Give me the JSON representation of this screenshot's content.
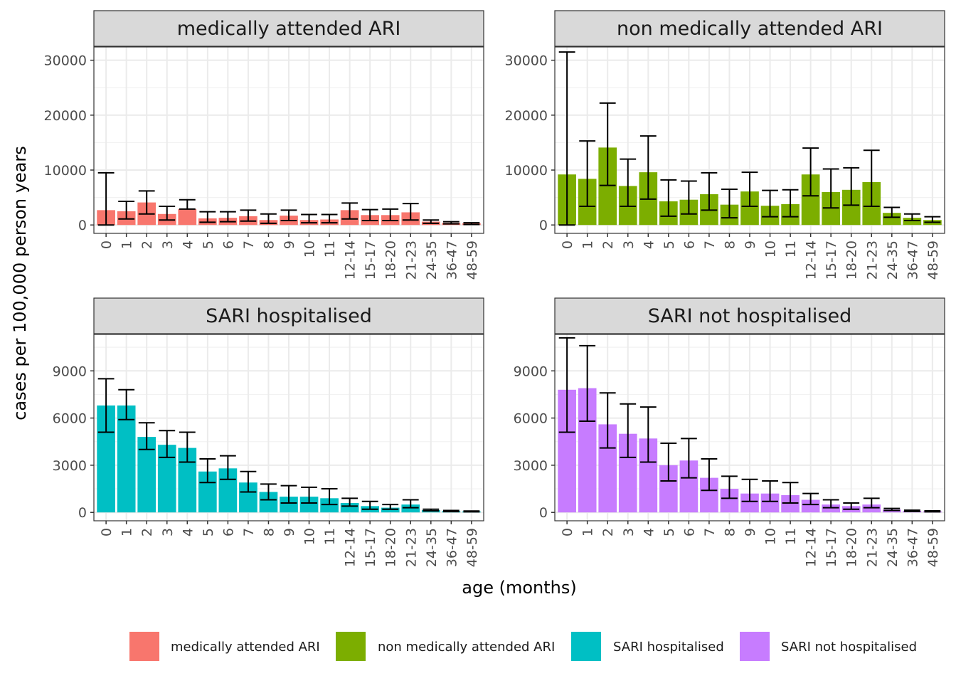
{
  "figure": {
    "xlabel": "age (months)",
    "ylabel": "cases per 100,000 person years"
  },
  "legend": {
    "position": "bottom",
    "entries": [
      {
        "label": "medically attended ARI",
        "color": "#F8766D"
      },
      {
        "label": "non medically attended ARI",
        "color": "#7CAE00"
      },
      {
        "label": "SARI hospitalised",
        "color": "#00BFC4"
      },
      {
        "label": "SARI not hospitalised",
        "color": "#C77CFF"
      }
    ]
  },
  "chart_data": [
    {
      "type": "bar",
      "title": "medically attended ARI",
      "color": "#F8766D",
      "categories": [
        "0",
        "1",
        "2",
        "3",
        "4",
        "5",
        "6",
        "7",
        "8",
        "9",
        "10",
        "11",
        "12-14",
        "15-17",
        "18-20",
        "21-23",
        "24-35",
        "36-47",
        "48-59"
      ],
      "values": [
        2700,
        2500,
        4100,
        2000,
        2900,
        1200,
        1300,
        1600,
        900,
        1700,
        900,
        1000,
        2700,
        1800,
        1800,
        2300,
        600,
        400,
        300
      ],
      "lower": [
        0,
        1100,
        2000,
        900,
        2900,
        500,
        600,
        700,
        300,
        800,
        400,
        400,
        1100,
        800,
        800,
        900,
        300,
        200,
        100
      ],
      "upper": [
        9500,
        4300,
        6200,
        3400,
        4600,
        2400,
        2400,
        2700,
        2000,
        2700,
        1900,
        1900,
        4000,
        2800,
        2900,
        3900,
        900,
        600,
        400
      ],
      "ylim": [
        0,
        31500
      ],
      "yticks": [
        0,
        10000,
        20000,
        30000
      ],
      "grid": true
    },
    {
      "type": "bar",
      "title": "non medically attended ARI",
      "color": "#7CAE00",
      "categories": [
        "0",
        "1",
        "2",
        "3",
        "4",
        "5",
        "6",
        "7",
        "8",
        "9",
        "10",
        "11",
        "12-14",
        "15-17",
        "18-20",
        "21-23",
        "24-35",
        "36-47",
        "48-59"
      ],
      "values": [
        9200,
        8400,
        14100,
        7100,
        9600,
        4300,
        4600,
        5600,
        3700,
        6100,
        3500,
        3800,
        9200,
        6000,
        6400,
        7800,
        2200,
        1300,
        900
      ],
      "lower": [
        0,
        3400,
        7200,
        3400,
        4700,
        1600,
        2000,
        2700,
        1300,
        3400,
        1500,
        1500,
        5300,
        3100,
        3600,
        3400,
        1400,
        800,
        500
      ],
      "upper": [
        31500,
        15300,
        22200,
        12000,
        16200,
        8200,
        8000,
        9500,
        6500,
        9600,
        6300,
        6400,
        14000,
        10200,
        10400,
        13600,
        3200,
        2000,
        1500
      ],
      "ylim": [
        0,
        31500
      ],
      "yticks": [
        0,
        10000,
        20000,
        30000
      ],
      "grid": true
    },
    {
      "type": "bar",
      "title": "SARI hospitalised",
      "color": "#00BFC4",
      "categories": [
        "0",
        "1",
        "2",
        "3",
        "4",
        "5",
        "6",
        "7",
        "8",
        "9",
        "10",
        "11",
        "12-14",
        "15-17",
        "18-20",
        "21-23",
        "24-35",
        "36-47",
        "48-59"
      ],
      "values": [
        6800,
        6800,
        4800,
        4300,
        4100,
        2600,
        2800,
        1900,
        1300,
        1000,
        1000,
        900,
        600,
        400,
        300,
        500,
        150,
        80,
        60
      ],
      "lower": [
        5100,
        5900,
        4000,
        3500,
        3200,
        1900,
        2100,
        1300,
        800,
        600,
        600,
        500,
        400,
        200,
        200,
        300,
        100,
        50,
        40
      ],
      "upper": [
        8500,
        7800,
        5700,
        5200,
        5100,
        3400,
        3600,
        2600,
        1800,
        1700,
        1600,
        1500,
        900,
        700,
        500,
        800,
        200,
        120,
        90
      ],
      "ylim": [
        0,
        11000
      ],
      "yticks": [
        0,
        3000,
        6000,
        9000
      ],
      "grid": true
    },
    {
      "type": "bar",
      "title": "SARI not hospitalised",
      "color": "#C77CFF",
      "categories": [
        "0",
        "1",
        "2",
        "3",
        "4",
        "5",
        "6",
        "7",
        "8",
        "9",
        "10",
        "11",
        "12-14",
        "15-17",
        "18-20",
        "21-23",
        "24-35",
        "36-47",
        "48-59"
      ],
      "values": [
        7800,
        7900,
        5600,
        5000,
        4700,
        3000,
        3300,
        2200,
        1500,
        1200,
        1200,
        1100,
        800,
        500,
        400,
        500,
        180,
        100,
        70
      ],
      "lower": [
        5100,
        5800,
        4100,
        3500,
        3200,
        2000,
        2200,
        1400,
        900,
        700,
        700,
        600,
        500,
        300,
        200,
        300,
        120,
        60,
        40
      ],
      "upper": [
        11100,
        10600,
        7600,
        6900,
        6700,
        4400,
        4700,
        3400,
        2300,
        2100,
        2000,
        1900,
        1200,
        800,
        600,
        900,
        250,
        140,
        100
      ],
      "ylim": [
        0,
        11000
      ],
      "yticks": [
        0,
        3000,
        6000,
        9000
      ],
      "grid": true
    }
  ]
}
